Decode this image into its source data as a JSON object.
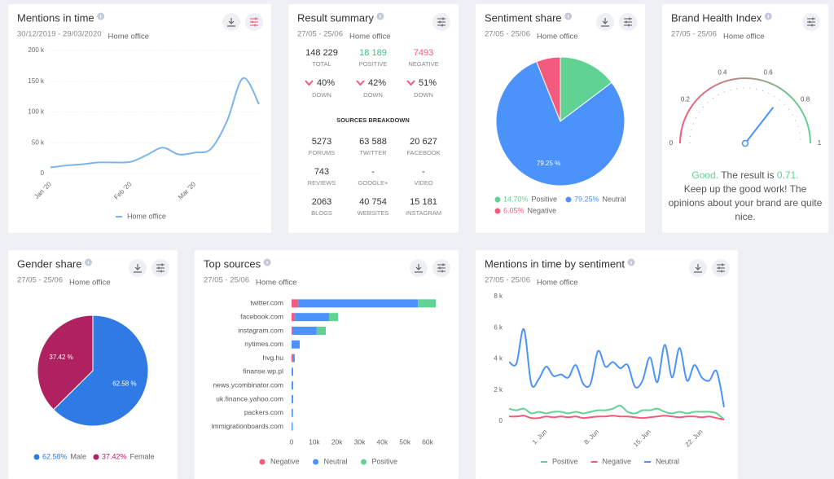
{
  "chart_data": [
    {
      "type": "line",
      "title": "Mentions in time",
      "subtitle": "30/12/2019 - 29/03/2020",
      "filter": "Home office",
      "categories": [
        "Jan '20",
        null,
        null,
        null,
        null,
        "Feb '20",
        null,
        null,
        null,
        "Mar '20",
        null,
        null,
        null,
        null
      ],
      "series": [
        {
          "name": "Home office",
          "color": "#7cb5ec",
          "values": [
            10000,
            13000,
            15000,
            18000,
            18000,
            19000,
            30000,
            42000,
            31000,
            34000,
            40000,
            85000,
            155000,
            113000
          ]
        }
      ],
      "ylim": [
        0,
        200000
      ],
      "yticks": [
        0,
        {
          "value": 50000,
          "label": "50 k"
        },
        {
          "value": 100000,
          "label": "100 k"
        },
        {
          "value": 150000,
          "label": "150 k"
        },
        {
          "value": 200000,
          "label": "200 k"
        }
      ],
      "grid": true
    },
    {
      "type": "pie",
      "title": "Sentiment share",
      "subtitle": "27/05 - 25/06",
      "filter": "Home office",
      "categories": [
        "Positive",
        "Neutral",
        "Negative"
      ],
      "values": [
        14.7,
        79.25,
        6.05
      ],
      "value_labels": [
        "14.70%",
        "79.25%",
        "6.05%"
      ],
      "slice_labels": [
        null,
        "79.25 %",
        null
      ],
      "colors": [
        "#60d394",
        "#4b93fb",
        "#f25b7d"
      ]
    },
    {
      "type": "gauge",
      "title": "Brand Health Index",
      "subtitle": "27/05 - 25/06",
      "filter": "Home office",
      "value": 0.71,
      "value_label": "0.71.",
      "rating": "Good.",
      "result_text": "The result is",
      "message": "Keep up the good work! The opinions about your brand are quite nice.",
      "ylim": [
        0,
        1
      ],
      "yticks": [
        0,
        0.2,
        0.4,
        0.6,
        0.8,
        1
      ],
      "colors": [
        "#f25b7d",
        "#60d394"
      ]
    },
    {
      "type": "pie",
      "title": "Gender share",
      "subtitle": "27/05 - 25/06",
      "filter": "Home office",
      "categories": [
        "Male",
        "Female"
      ],
      "values": [
        62.58,
        37.42
      ],
      "value_labels": [
        "62.58%",
        "37.42%"
      ],
      "slice_labels": [
        "62.58 %",
        "37.42 %"
      ],
      "colors": [
        "#2f7ae5",
        "#b0215f"
      ]
    },
    {
      "type": "stacked-bar",
      "title": "Top sources",
      "subtitle": "27/05 - 25/06",
      "filter": "Home office",
      "categories": [
        "twitter.com",
        "facebook.com",
        "instagram.com",
        "nytimes.com",
        "hvg.hu",
        "finanse.wp.pl",
        "news.ycombinator.com",
        "uk.finance.yahoo.com",
        "packers.com",
        "immigrationboards.com"
      ],
      "series": [
        {
          "name": "Negative",
          "color": "#f25b7d",
          "values": [
            3000,
            1500,
            300,
            0,
            600,
            0,
            0,
            0,
            0,
            0
          ]
        },
        {
          "name": "Neutral",
          "color": "#4b93fb",
          "values": [
            52700,
            15000,
            10800,
            3600,
            800,
            700,
            700,
            700,
            600,
            500
          ]
        },
        {
          "name": "Positive",
          "color": "#60d394",
          "values": [
            7900,
            4000,
            4000,
            0,
            0,
            0,
            0,
            0,
            0,
            0
          ]
        }
      ],
      "xlim": [
        0,
        65000
      ],
      "xticks": [
        0,
        {
          "value": 10000,
          "label": "10k"
        },
        {
          "value": 20000,
          "label": "20k"
        },
        {
          "value": 30000,
          "label": "30k"
        },
        {
          "value": 40000,
          "label": "40k"
        },
        {
          "value": 50000,
          "label": "50k"
        },
        {
          "value": 60000,
          "label": "60k"
        }
      ],
      "grid": false
    },
    {
      "type": "line",
      "title": "Mentions in time by sentiment",
      "subtitle": "27/05 - 25/06",
      "filter": "Home office",
      "categories": [
        null,
        null,
        null,
        null,
        null,
        "1. Jun",
        null,
        null,
        null,
        null,
        null,
        null,
        "8. Jun",
        null,
        null,
        null,
        null,
        null,
        null,
        "15. Jun",
        null,
        null,
        null,
        null,
        null,
        null,
        "22. Jun",
        null,
        null,
        null
      ],
      "series": [
        {
          "name": "Positive",
          "color": "#60d394",
          "values": [
            800,
            700,
            800,
            500,
            600,
            500,
            600,
            600,
            500,
            600,
            500,
            600,
            700,
            700,
            800,
            1000,
            600,
            500,
            700,
            700,
            800,
            600,
            500,
            600,
            500,
            600,
            600,
            600,
            500,
            100
          ]
        },
        {
          "name": "Negative",
          "color": "#f25b7d",
          "values": [
            300,
            300,
            350,
            200,
            200,
            300,
            250,
            300,
            250,
            300,
            200,
            250,
            300,
            300,
            350,
            300,
            300,
            250,
            200,
            250,
            300,
            350,
            300,
            250,
            300,
            300,
            250,
            300,
            200,
            100
          ]
        },
        {
          "name": "Neutral",
          "color": "#4b93fb",
          "values": [
            3800,
            3700,
            5900,
            2400,
            2700,
            3500,
            2900,
            3000,
            2800,
            3600,
            2400,
            2400,
            4500,
            3500,
            3800,
            3400,
            3600,
            2200,
            2600,
            4100,
            2500,
            4900,
            2800,
            4700,
            2600,
            3600,
            2800,
            2600,
            3200,
            900
          ]
        }
      ],
      "ylim": [
        0,
        8000
      ],
      "yticks": [
        0,
        {
          "value": 2000,
          "label": "2 k"
        },
        {
          "value": 4000,
          "label": "4 k"
        },
        {
          "value": 6000,
          "label": "6 k"
        },
        {
          "value": 8000,
          "label": "8 k"
        }
      ],
      "grid": false
    }
  ],
  "result_summary": {
    "title": "Result summary",
    "subtitle": "27/05 - 25/06",
    "filter": "Home office",
    "stats": [
      {
        "value": "148 229",
        "label": "TOTAL",
        "color": "#333333"
      },
      {
        "value": "18 189",
        "label": "POSITIVE",
        "color": "#3fbf85"
      },
      {
        "value": "7493",
        "label": "NEGATIVE",
        "color": "#f25b7d"
      }
    ],
    "changes": [
      {
        "value": "40%",
        "label": "DOWN"
      },
      {
        "value": "42%",
        "label": "DOWN"
      },
      {
        "value": "51%",
        "label": "DOWN"
      }
    ],
    "change_color": "#f25b7d",
    "sources_title": "SOURCES BREAKDOWN",
    "sources": [
      {
        "value": "5273",
        "label": "FORUMS"
      },
      {
        "value": "63 588",
        "label": "TWITTER"
      },
      {
        "value": "20 627",
        "label": "FACEBOOK"
      },
      {
        "value": "743",
        "label": "REVIEWS"
      },
      {
        "value": "-",
        "label": "GOOGLE+"
      },
      {
        "value": "-",
        "label": "VIDEO"
      },
      {
        "value": "2063",
        "label": "BLOGS"
      },
      {
        "value": "40 754",
        "label": "WEBSITES"
      },
      {
        "value": "15 181",
        "label": "INSTAGRAM"
      }
    ]
  }
}
